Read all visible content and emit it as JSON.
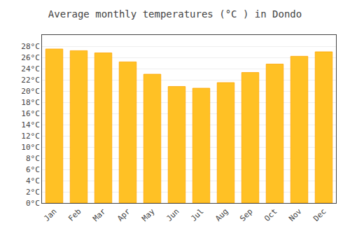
{
  "chart_data": {
    "type": "bar",
    "title": "Average monthly temperatures (°C ) in Dondo",
    "categories": [
      "Jan",
      "Feb",
      "Mar",
      "Apr",
      "May",
      "Jun",
      "Jul",
      "Aug",
      "Sep",
      "Oct",
      "Nov",
      "Dec"
    ],
    "values": [
      27.5,
      27.2,
      26.8,
      25.2,
      23.0,
      20.8,
      20.5,
      21.5,
      23.3,
      24.8,
      26.2,
      27.0
    ],
    "color": "#FFC125",
    "ylim": [
      0,
      30
    ],
    "yticks": [
      {
        "value": 0,
        "label": "0°C"
      },
      {
        "value": 2,
        "label": "2°C"
      },
      {
        "value": 4,
        "label": "4°C"
      },
      {
        "value": 6,
        "label": "6°C"
      },
      {
        "value": 8,
        "label": "8°C"
      },
      {
        "value": 10,
        "label": "10°C"
      },
      {
        "value": 12,
        "label": "12°C"
      },
      {
        "value": 14,
        "label": "14°C"
      },
      {
        "value": 16,
        "label": "16°C"
      },
      {
        "value": 18,
        "label": "18°C"
      },
      {
        "value": 20,
        "label": "20°C"
      },
      {
        "value": 22,
        "label": "22°C"
      },
      {
        "value": 24,
        "label": "24°C"
      },
      {
        "value": 26,
        "label": "26°C"
      },
      {
        "value": 28,
        "label": "28°C"
      }
    ],
    "grid": true
  }
}
